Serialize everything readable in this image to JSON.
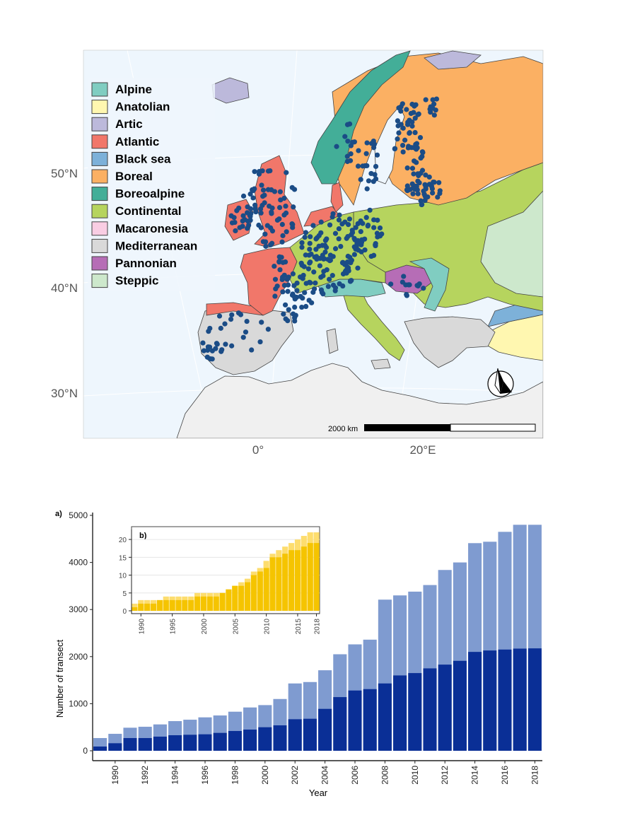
{
  "map": {
    "legend": [
      {
        "label": "Alpine",
        "color": "#80CDC1"
      },
      {
        "label": "Anatolian",
        "color": "#FFF7B0"
      },
      {
        "label": "Artic",
        "color": "#BCB9DB"
      },
      {
        "label": "Atlantic",
        "color": "#F1776A"
      },
      {
        "label": "Black sea",
        "color": "#7DB1D9"
      },
      {
        "label": "Boreal",
        "color": "#FBB063"
      },
      {
        "label": "Boreoalpine",
        "color": "#43AE98"
      },
      {
        "label": "Continental",
        "color": "#B6D45E"
      },
      {
        "label": "Macaronesia",
        "color": "#F9CDE3"
      },
      {
        "label": "Mediterranean",
        "color": "#D9D9D9"
      },
      {
        "label": "Pannonian",
        "color": "#B66DB6"
      },
      {
        "label": "Steppic",
        "color": "#CDE8CC"
      }
    ],
    "lat_labels": [
      "50°N",
      "40°N",
      "30°N"
    ],
    "lon_labels": [
      "0°",
      "20°E"
    ],
    "scale_label": "2000 km",
    "site_color": "#1B4C86",
    "sea_color": "#EEF6FD"
  },
  "chart_data": [
    {
      "type": "bar",
      "panel_label": "a)",
      "xlabel": "Year",
      "ylabel": "Number of transect",
      "ylim": [
        0,
        5000
      ],
      "yticks": [
        0,
        1000,
        2000,
        3000,
        4000,
        5000
      ],
      "x": [
        1989,
        1990,
        1991,
        1992,
        1993,
        1994,
        1995,
        1996,
        1997,
        1998,
        1999,
        2000,
        2001,
        2002,
        2003,
        2004,
        2005,
        2006,
        2007,
        2008,
        2009,
        2010,
        2011,
        2012,
        2013,
        2014,
        2015,
        2016,
        2017,
        2018
      ],
      "xticks": [
        "1990",
        "1992",
        "1994",
        "1996",
        "1998",
        "2000",
        "2002",
        "2004",
        "2006",
        "2008",
        "2010",
        "2012",
        "2014",
        "2016",
        "2018"
      ],
      "series": [
        {
          "color": "#0A2F96",
          "values": [
            90,
            160,
            270,
            270,
            300,
            330,
            340,
            350,
            380,
            420,
            450,
            500,
            540,
            670,
            680,
            890,
            1140,
            1280,
            1310,
            1430,
            1600,
            1650,
            1750,
            1830,
            1910,
            2100,
            2130,
            2150,
            2170,
            2175
          ]
        },
        {
          "color": "#7F9BD0",
          "values": [
            270,
            360,
            490,
            510,
            560,
            630,
            660,
            710,
            750,
            830,
            920,
            970,
            1100,
            1430,
            1460,
            1710,
            2050,
            2260,
            2360,
            3210,
            3300,
            3380,
            3520,
            3840,
            4000,
            4410,
            4440,
            4650,
            4800,
            4800
          ]
        }
      ]
    },
    {
      "type": "bar",
      "panel_label": "b)",
      "ylim": [
        0,
        22
      ],
      "yticks": [
        0,
        5,
        10,
        15,
        20
      ],
      "x": [
        1989,
        1990,
        1991,
        1992,
        1993,
        1994,
        1995,
        1996,
        1997,
        1998,
        1999,
        2000,
        2001,
        2002,
        2003,
        2004,
        2005,
        2006,
        2007,
        2008,
        2009,
        2010,
        2011,
        2012,
        2013,
        2014,
        2015,
        2016,
        2017,
        2018
      ],
      "xticks": [
        "1990",
        "1995",
        "2000",
        "2005",
        "2010",
        "2015",
        "2018"
      ],
      "series": [
        {
          "color": "#F5C400",
          "values": [
            1,
            2,
            2,
            2,
            3,
            3,
            3,
            3,
            3,
            3,
            4,
            4,
            4,
            4,
            5,
            6,
            7,
            7,
            8,
            10,
            11,
            12,
            15,
            15,
            16,
            17,
            17,
            18,
            19,
            19
          ]
        },
        {
          "color": "#FDDD6E",
          "values": [
            2,
            3,
            3,
            3,
            3,
            4,
            4,
            4,
            4,
            4,
            5,
            5,
            5,
            5,
            5,
            6,
            7,
            8,
            9,
            11,
            12,
            14,
            16,
            17,
            18,
            19,
            20,
            21,
            22,
            22
          ]
        }
      ]
    }
  ]
}
